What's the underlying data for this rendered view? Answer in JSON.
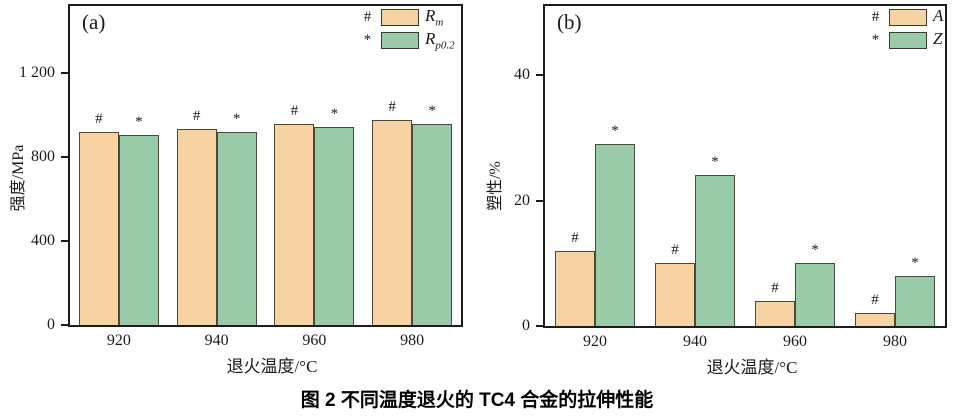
{
  "figure": {
    "caption": "图 2  不同温度退火的 TC4 合金的拉伸性能"
  },
  "colors": {
    "bar_orange": "#f7d3a4",
    "bar_green": "#99cba8",
    "bar_border": "#4a4a3c",
    "axis": "#1c1c1c"
  },
  "chart_data": [
    {
      "type": "bar",
      "panel_label": "(a)",
      "xlabel": "退火温度/°C",
      "ylabel": "强度/MPa",
      "ylim": [
        0,
        1520
      ],
      "yticks": [
        {
          "value": 0,
          "label": "0"
        },
        {
          "value": 400,
          "label": "400"
        },
        {
          "value": 800,
          "label": "800"
        },
        {
          "value": 1200,
          "label": "1 200"
        }
      ],
      "categories": [
        "920",
        "940",
        "960",
        "980"
      ],
      "series": [
        {
          "marker": "#",
          "legend": {
            "base": "R",
            "sub": "m"
          },
          "color": "bar_orange",
          "values": [
            920,
            935,
            960,
            975
          ]
        },
        {
          "marker": "*",
          "legend": {
            "base": "R",
            "sub": "p0.2"
          },
          "color": "bar_green",
          "values": [
            905,
            920,
            945,
            960
          ]
        }
      ],
      "legend_position": "top-right",
      "grid": false
    },
    {
      "type": "bar",
      "panel_label": "(b)",
      "xlabel": "退火温度/°C",
      "ylabel": "塑性/%",
      "ylim": [
        0,
        51
      ],
      "yticks": [
        {
          "value": 0,
          "label": "0"
        },
        {
          "value": 20,
          "label": "20"
        },
        {
          "value": 40,
          "label": "40"
        }
      ],
      "categories": [
        "920",
        "940",
        "960",
        "980"
      ],
      "series": [
        {
          "marker": "#",
          "legend": {
            "base": "A",
            "sub": ""
          },
          "color": "bar_orange",
          "values": [
            12,
            10,
            4,
            2
          ]
        },
        {
          "marker": "*",
          "legend": {
            "base": "Z",
            "sub": ""
          },
          "color": "bar_green",
          "values": [
            29,
            24,
            10,
            8
          ]
        }
      ],
      "legend_position": "top-right",
      "grid": false
    }
  ]
}
